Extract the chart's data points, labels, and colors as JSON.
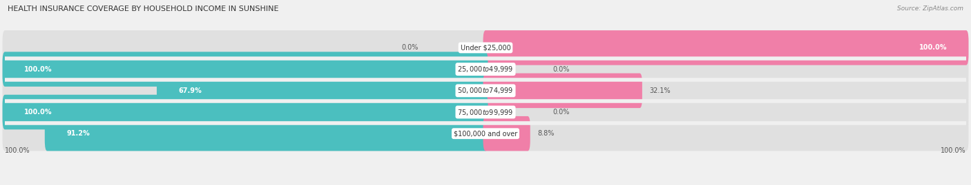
{
  "title": "HEALTH INSURANCE COVERAGE BY HOUSEHOLD INCOME IN SUNSHINE",
  "source": "Source: ZipAtlas.com",
  "categories": [
    "Under $25,000",
    "$25,000 to $49,999",
    "$50,000 to $74,999",
    "$75,000 to $99,999",
    "$100,000 and over"
  ],
  "with_coverage": [
    0.0,
    100.0,
    67.9,
    100.0,
    91.2
  ],
  "without_coverage": [
    100.0,
    0.0,
    32.1,
    0.0,
    8.8
  ],
  "color_with": "#4bbfbf",
  "color_without": "#f07fa8",
  "bar_height": 0.62,
  "background_color": "#f0f0f0",
  "bar_bg_color": "#e0e0e0",
  "bottom_left_label": "100.0%",
  "bottom_right_label": "100.0%"
}
